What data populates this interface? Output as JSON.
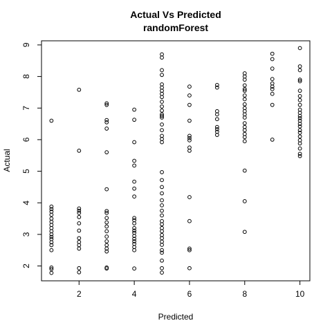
{
  "chart_data": {
    "type": "scatter",
    "title": "Actual Vs Predicted",
    "subtitle": "randomForest",
    "xlabel": "Predicted",
    "ylabel": "Actual",
    "xlim": [
      0.64,
      10.36
    ],
    "ylim": [
      1.53,
      9.13
    ],
    "xticks": [
      "2",
      "4",
      "6",
      "8",
      "10"
    ],
    "yticks": [
      "2",
      "3",
      "4",
      "5",
      "6",
      "7",
      "8",
      "9"
    ],
    "grid": false,
    "legend": "none",
    "marker": "open-circle",
    "colors": {
      "points": "#000000",
      "axes": "#000000",
      "background": "#ffffff"
    },
    "points": [
      [
        1,
        6.6
      ],
      [
        1,
        3.88
      ],
      [
        1,
        3.8
      ],
      [
        1,
        3.72
      ],
      [
        1,
        3.62
      ],
      [
        1,
        3.5
      ],
      [
        1,
        3.4
      ],
      [
        1,
        3.3
      ],
      [
        1,
        3.2
      ],
      [
        1,
        3.1
      ],
      [
        1,
        3.0
      ],
      [
        1,
        2.92
      ],
      [
        1,
        2.85
      ],
      [
        1,
        2.75
      ],
      [
        1,
        2.66
      ],
      [
        1,
        2.5
      ],
      [
        1,
        1.95
      ],
      [
        1,
        1.9
      ],
      [
        1,
        1.78
      ],
      [
        2,
        7.58
      ],
      [
        2,
        5.65
      ],
      [
        2,
        3.82
      ],
      [
        2,
        3.75
      ],
      [
        2,
        3.68
      ],
      [
        2,
        3.55
      ],
      [
        2,
        3.35
      ],
      [
        2,
        3.12
      ],
      [
        2,
        2.88
      ],
      [
        2,
        2.76
      ],
      [
        2,
        2.66
      ],
      [
        2,
        2.55
      ],
      [
        2,
        1.93
      ],
      [
        2,
        1.8
      ],
      [
        3,
        7.15
      ],
      [
        3,
        7.1
      ],
      [
        3,
        6.62
      ],
      [
        3,
        6.55
      ],
      [
        3,
        6.35
      ],
      [
        3,
        5.6
      ],
      [
        3,
        4.43
      ],
      [
        3,
        3.74
      ],
      [
        3,
        3.68
      ],
      [
        3,
        3.52
      ],
      [
        3,
        3.38
      ],
      [
        3,
        3.25
      ],
      [
        3,
        3.1
      ],
      [
        3,
        2.93
      ],
      [
        3,
        2.78
      ],
      [
        3,
        2.66
      ],
      [
        3,
        2.55
      ],
      [
        3,
        2.46
      ],
      [
        3,
        1.95
      ],
      [
        3,
        1.92
      ],
      [
        4,
        6.95
      ],
      [
        4,
        6.63
      ],
      [
        4,
        5.92
      ],
      [
        4,
        5.33
      ],
      [
        4,
        5.18
      ],
      [
        4,
        4.67
      ],
      [
        4,
        4.45
      ],
      [
        4,
        4.2
      ],
      [
        4,
        3.52
      ],
      [
        4,
        3.45
      ],
      [
        4,
        3.35
      ],
      [
        4,
        3.2
      ],
      [
        4,
        3.12
      ],
      [
        4,
        3.05
      ],
      [
        4,
        2.95
      ],
      [
        4,
        2.86
      ],
      [
        4,
        2.78
      ],
      [
        4,
        2.7
      ],
      [
        4,
        2.6
      ],
      [
        4,
        2.5
      ],
      [
        4,
        1.92
      ],
      [
        5,
        8.7
      ],
      [
        5,
        8.6
      ],
      [
        5,
        8.2
      ],
      [
        5,
        8.05
      ],
      [
        5,
        7.75
      ],
      [
        5,
        7.65
      ],
      [
        5,
        7.55
      ],
      [
        5,
        7.45
      ],
      [
        5,
        7.35
      ],
      [
        5,
        7.2
      ],
      [
        5,
        7.05
      ],
      [
        5,
        6.92
      ],
      [
        5,
        6.8
      ],
      [
        5,
        6.75
      ],
      [
        5,
        6.7
      ],
      [
        5,
        6.48
      ],
      [
        5,
        6.3
      ],
      [
        5,
        6.12
      ],
      [
        5,
        6.02
      ],
      [
        5,
        5.92
      ],
      [
        5,
        4.97
      ],
      [
        5,
        4.72
      ],
      [
        5,
        4.5
      ],
      [
        5,
        4.3
      ],
      [
        5,
        4.08
      ],
      [
        5,
        3.92
      ],
      [
        5,
        3.75
      ],
      [
        5,
        3.6
      ],
      [
        5,
        3.42
      ],
      [
        5,
        3.32
      ],
      [
        5,
        3.2
      ],
      [
        5,
        3.1
      ],
      [
        5,
        2.98
      ],
      [
        5,
        2.88
      ],
      [
        5,
        2.77
      ],
      [
        5,
        2.67
      ],
      [
        5,
        2.5
      ],
      [
        5,
        2.42
      ],
      [
        5,
        2.17
      ],
      [
        5,
        1.93
      ],
      [
        5,
        1.79
      ],
      [
        6,
        7.68
      ],
      [
        6,
        7.4
      ],
      [
        6,
        7.1
      ],
      [
        6,
        6.6
      ],
      [
        6,
        6.12
      ],
      [
        6,
        6.05
      ],
      [
        6,
        5.98
      ],
      [
        6,
        5.75
      ],
      [
        6,
        5.65
      ],
      [
        6,
        4.18
      ],
      [
        6,
        3.42
      ],
      [
        6,
        2.55
      ],
      [
        6,
        2.5
      ],
      [
        6,
        1.93
      ],
      [
        7,
        7.73
      ],
      [
        7,
        7.65
      ],
      [
        7,
        6.9
      ],
      [
        7,
        6.8
      ],
      [
        7,
        6.65
      ],
      [
        7,
        6.4
      ],
      [
        7,
        6.33
      ],
      [
        7,
        6.25
      ],
      [
        7,
        6.15
      ],
      [
        8,
        8.1
      ],
      [
        8,
        8.0
      ],
      [
        8,
        7.9
      ],
      [
        8,
        7.72
      ],
      [
        8,
        7.6
      ],
      [
        8,
        7.55
      ],
      [
        8,
        7.4
      ],
      [
        8,
        7.28
      ],
      [
        8,
        7.12
      ],
      [
        8,
        7.0
      ],
      [
        8,
        6.9
      ],
      [
        8,
        6.8
      ],
      [
        8,
        6.7
      ],
      [
        8,
        6.52
      ],
      [
        8,
        6.4
      ],
      [
        8,
        6.3
      ],
      [
        8,
        6.18
      ],
      [
        8,
        6.08
      ],
      [
        8,
        5.95
      ],
      [
        8,
        5.02
      ],
      [
        8,
        4.05
      ],
      [
        8,
        3.08
      ],
      [
        9,
        8.72
      ],
      [
        9,
        8.55
      ],
      [
        9,
        8.25
      ],
      [
        9,
        7.92
      ],
      [
        9,
        7.78
      ],
      [
        9,
        7.68
      ],
      [
        9,
        7.6
      ],
      [
        9,
        7.45
      ],
      [
        9,
        7.1
      ],
      [
        9,
        6.0
      ],
      [
        10,
        8.9
      ],
      [
        10,
        8.32
      ],
      [
        10,
        8.2
      ],
      [
        10,
        7.9
      ],
      [
        10,
        7.85
      ],
      [
        10,
        7.55
      ],
      [
        10,
        7.38
      ],
      [
        10,
        7.25
      ],
      [
        10,
        7.1
      ],
      [
        10,
        6.95
      ],
      [
        10,
        6.85
      ],
      [
        10,
        6.75
      ],
      [
        10,
        6.68
      ],
      [
        10,
        6.6
      ],
      [
        10,
        6.5
      ],
      [
        10,
        6.42
      ],
      [
        10,
        6.3
      ],
      [
        10,
        6.22
      ],
      [
        10,
        6.1
      ],
      [
        10,
        5.98
      ],
      [
        10,
        5.88
      ],
      [
        10,
        5.72
      ],
      [
        10,
        5.55
      ],
      [
        10,
        5.48
      ]
    ]
  }
}
